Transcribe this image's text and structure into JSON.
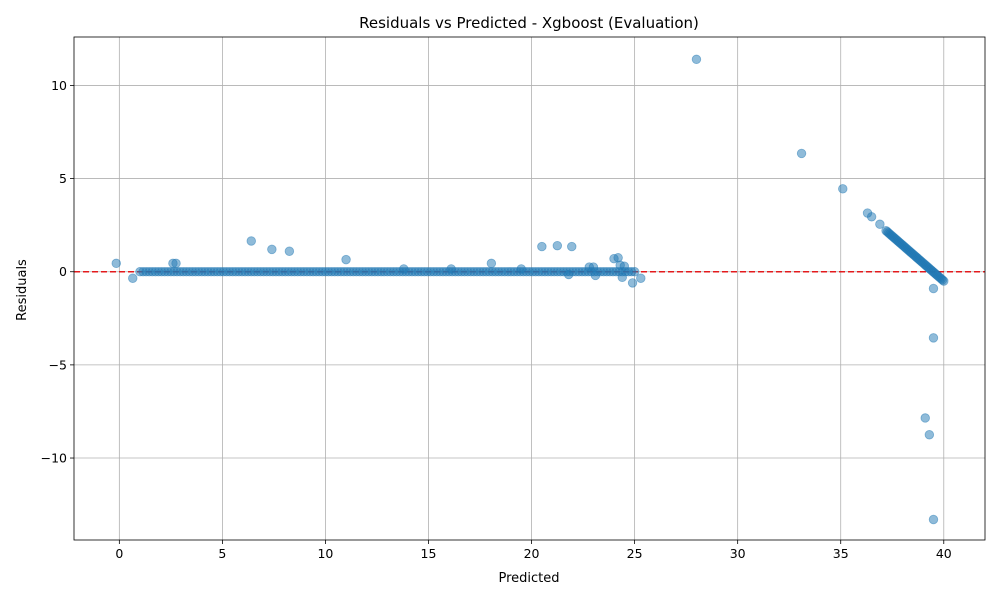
{
  "chart_data": {
    "type": "scatter",
    "title": "Residuals vs Predicted - Xgboost (Evaluation)",
    "xlabel": "Predicted",
    "ylabel": "Residuals",
    "xlim": [
      -2.2,
      42.0
    ],
    "ylim": [
      -14.4,
      12.6
    ],
    "xticks": [
      0,
      5,
      10,
      15,
      20,
      25,
      30,
      35,
      40
    ],
    "yticks": [
      -10,
      -5,
      0,
      5,
      10
    ],
    "grid": true,
    "reference_line": {
      "y": 0,
      "color": "#e31a1c",
      "style": "dashed"
    },
    "point_color": "#1f77b4",
    "point_opacity": 0.5,
    "dense_band": {
      "x_start": 1.0,
      "x_end": 25.0,
      "step": 0.15,
      "y": 0.0
    },
    "diagonal_band": {
      "x_start": 37.2,
      "y_start": 2.2,
      "x_end": 40.0,
      "y_end": -0.5,
      "count": 48
    },
    "points": [
      [
        -0.15,
        0.45
      ],
      [
        0.65,
        -0.35
      ],
      [
        2.6,
        0.45
      ],
      [
        2.75,
        0.45
      ],
      [
        6.4,
        1.65
      ],
      [
        7.4,
        1.2
      ],
      [
        8.25,
        1.1
      ],
      [
        11.0,
        0.65
      ],
      [
        13.8,
        0.15
      ],
      [
        16.1,
        0.15
      ],
      [
        18.05,
        0.45
      ],
      [
        19.5,
        0.15
      ],
      [
        20.5,
        1.35
      ],
      [
        21.25,
        1.4
      ],
      [
        21.95,
        1.35
      ],
      [
        21.8,
        -0.15
      ],
      [
        24.0,
        0.7
      ],
      [
        24.2,
        0.75
      ],
      [
        24.3,
        0.35
      ],
      [
        24.5,
        0.3
      ],
      [
        24.4,
        -0.3
      ],
      [
        24.9,
        -0.6
      ],
      [
        25.3,
        -0.35
      ],
      [
        23.1,
        -0.2
      ],
      [
        23.0,
        0.25
      ],
      [
        22.8,
        0.25
      ],
      [
        28.0,
        11.4
      ],
      [
        33.1,
        6.35
      ],
      [
        35.1,
        4.45
      ],
      [
        36.3,
        3.15
      ],
      [
        36.5,
        2.95
      ],
      [
        36.9,
        2.55
      ],
      [
        39.5,
        -0.9
      ],
      [
        39.5,
        -3.55
      ],
      [
        39.1,
        -7.85
      ],
      [
        39.3,
        -8.75
      ],
      [
        39.5,
        -13.3
      ]
    ]
  }
}
